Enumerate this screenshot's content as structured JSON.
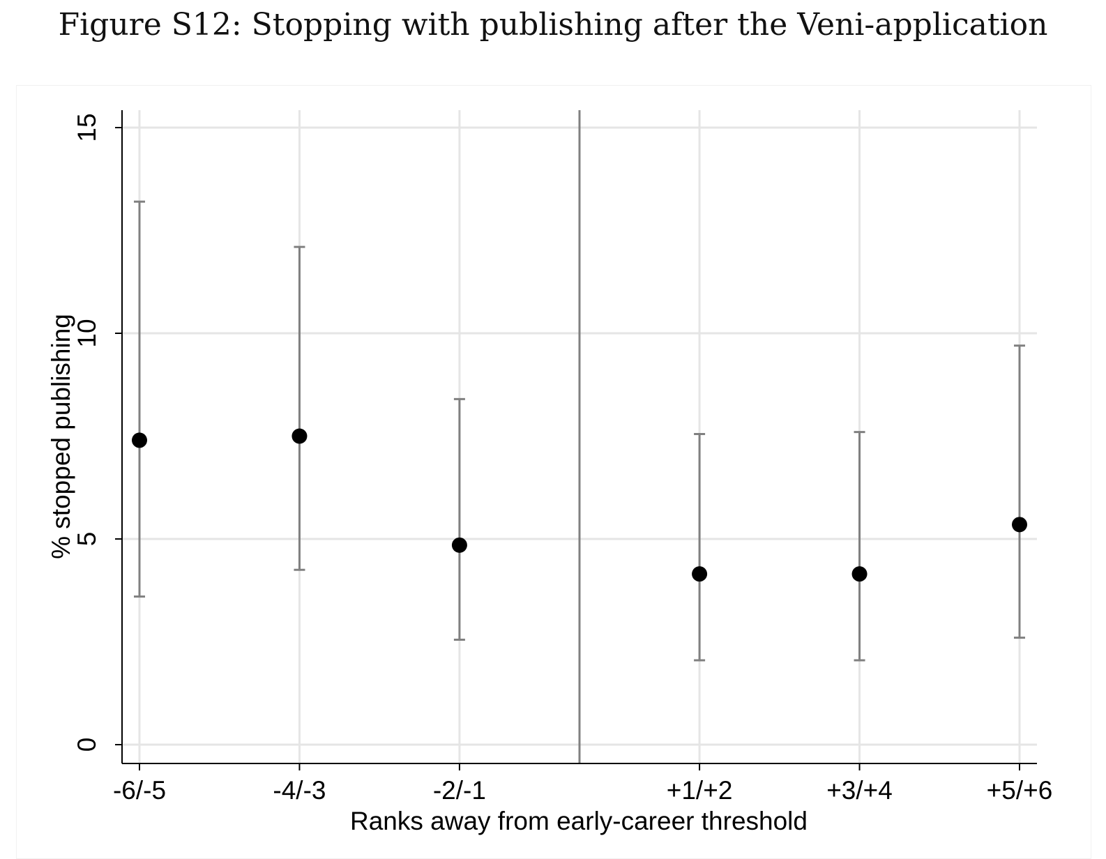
{
  "figure_title": "Figure S12: Stopping with publishing after the Veni-application",
  "chart_data": {
    "type": "scatter",
    "subtype": "point-estimates-with-confidence-intervals",
    "title": "",
    "xlabel": "Ranks away from early-career threshold",
    "ylabel": "% stopped publishing",
    "categories": [
      "-6/-5",
      "-4/-3",
      "-2/-1",
      "+1/+2",
      "+3/+4",
      "+5/+6"
    ],
    "x": [
      -5.5,
      -3.5,
      -1.5,
      1.5,
      3.5,
      5.5
    ],
    "values": [
      7.4,
      7.5,
      4.85,
      4.15,
      4.15,
      5.35
    ],
    "ci_lower": [
      3.6,
      4.25,
      2.55,
      2.05,
      2.05,
      2.6
    ],
    "ci_upper": [
      13.2,
      12.1,
      8.4,
      7.55,
      7.6,
      9.7
    ],
    "ylim": [
      0,
      15
    ],
    "yticks": [
      0,
      5,
      10,
      15
    ],
    "threshold_x": 0,
    "grid": true,
    "legend": "none",
    "colors": {
      "point": "#000000",
      "errorbar": "#808080",
      "threshold_line": "#808080",
      "grid": "#e5e5e5",
      "axis": "#000000"
    }
  }
}
